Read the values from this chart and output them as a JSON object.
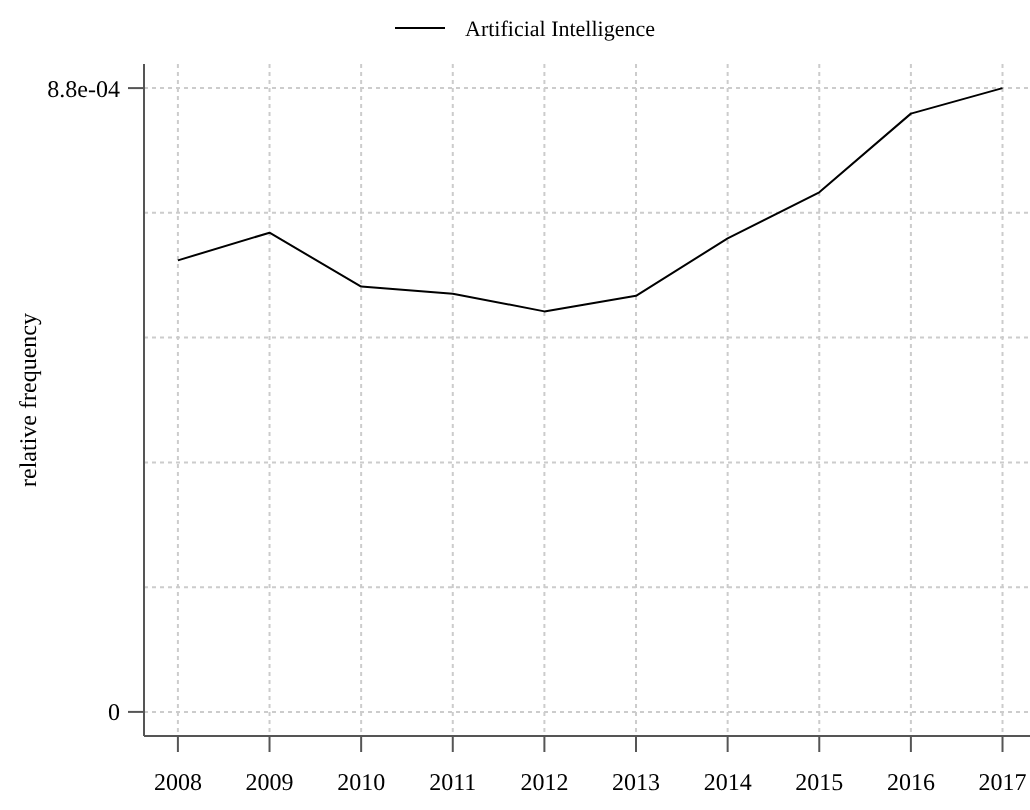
{
  "chart_data": {
    "type": "line",
    "ylabel": "relative frequency",
    "x": [
      2008,
      2009,
      2010,
      2011,
      2012,
      2013,
      2014,
      2015,
      2016,
      2017
    ],
    "series": [
      {
        "name": "Artificial Intelligence",
        "color": "#000000",
        "values": [
          0.000637,
          0.000676,
          0.0006,
          0.00059,
          0.000565,
          0.000587,
          0.000668,
          0.000733,
          0.000844,
          0.00088
        ]
      }
    ],
    "xlim": [
      2007.63,
      2017.3
    ],
    "xticks": [
      2008,
      2009,
      2010,
      2011,
      2012,
      2013,
      2014,
      2015,
      2016,
      2017
    ],
    "ylim": [
      -3.4e-05,
      0.000914
    ],
    "yticks": [
      0,
      {
        "value": 0.000176,
        "label": null
      },
      {
        "value": 0.000352,
        "label": null
      },
      {
        "value": 0.000528,
        "label": null
      },
      {
        "value": 0.000704,
        "label": null
      },
      {
        "value": 0.00088,
        "label": "8.8e-04"
      }
    ],
    "grid": true,
    "legend": "top",
    "marker": "none",
    "line_style": "solid"
  }
}
